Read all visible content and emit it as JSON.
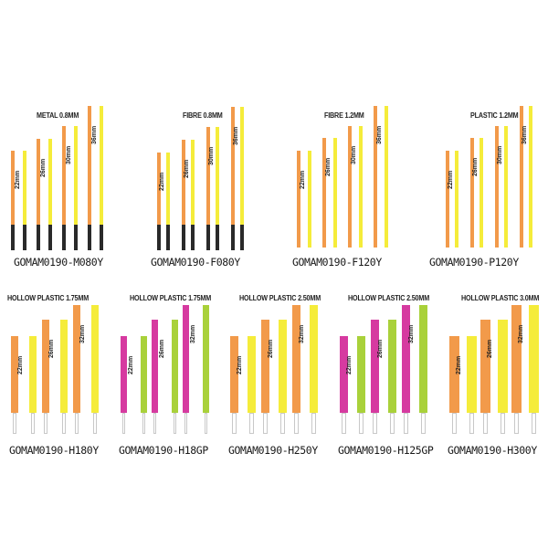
{
  "colors": {
    "orange": "#F29A4A",
    "yellow": "#F5EC3A",
    "magenta": "#D63AA0",
    "green": "#A9D13A",
    "black_tip": "#2a2a2a",
    "clear_stem": "#ffffff"
  },
  "panels": [
    {
      "title": "METAL 0.8MM",
      "code": "GOMAM0190-M080Y",
      "stem": "black",
      "colors": [
        "orange",
        "yellow"
      ],
      "sizes": [
        "22mm",
        "26mm",
        "30mm",
        "36mm"
      ]
    },
    {
      "title": "FIBRE 0.8MM",
      "code": "GOMAM0190-F080Y",
      "stem": "black",
      "colors": [
        "orange",
        "yellow"
      ],
      "sizes": [
        "22mm",
        "26mm",
        "30mm",
        "36mm"
      ]
    },
    {
      "title": "FIBRE 1.2MM",
      "code": "GOMAM0190-F120Y",
      "stem": "none",
      "colors": [
        "orange",
        "yellow"
      ],
      "sizes": [
        "22mm",
        "26mm",
        "30mm",
        "36mm"
      ]
    },
    {
      "title": "PLASTIC 1.2MM",
      "code": "GOMAM0190-P120Y",
      "stem": "none",
      "colors": [
        "orange",
        "yellow"
      ],
      "sizes": [
        "22mm",
        "26mm",
        "30mm",
        "36mm"
      ]
    },
    {
      "title": "HOLLOW PLASTIC 1.75MM",
      "code": "GOMAM0190-H180Y",
      "stem": "clear",
      "colors": [
        "orange",
        "yellow"
      ],
      "sizes": [
        "22mm",
        "26mm",
        "32mm"
      ]
    },
    {
      "title": "HOLLOW PLASTIC 1.75MM",
      "code": "GOMAM0190-H18GP",
      "stem": "clear",
      "colors": [
        "magenta",
        "green"
      ],
      "sizes": [
        "22mm",
        "26mm",
        "32mm"
      ]
    },
    {
      "title": "HOLLOW PLASTIC 2.50MM",
      "code": "GOMAM0190-H250Y",
      "stem": "clear",
      "colors": [
        "orange",
        "yellow"
      ],
      "sizes": [
        "22mm",
        "26mm",
        "32mm"
      ]
    },
    {
      "title": "HOLLOW PLASTIC 2.50MM",
      "code": "GOMAM0190-H125GP",
      "stem": "clear",
      "colors": [
        "magenta",
        "green"
      ],
      "sizes": [
        "22mm",
        "26mm",
        "32mm"
      ]
    },
    {
      "title": "HOLLOW PLASTIC 3.0MM",
      "code": "GOMAM0190-H300Y",
      "stem": "clear",
      "colors": [
        "orange",
        "yellow"
      ],
      "sizes": [
        "22mm",
        "26mm",
        "32mm"
      ]
    }
  ]
}
